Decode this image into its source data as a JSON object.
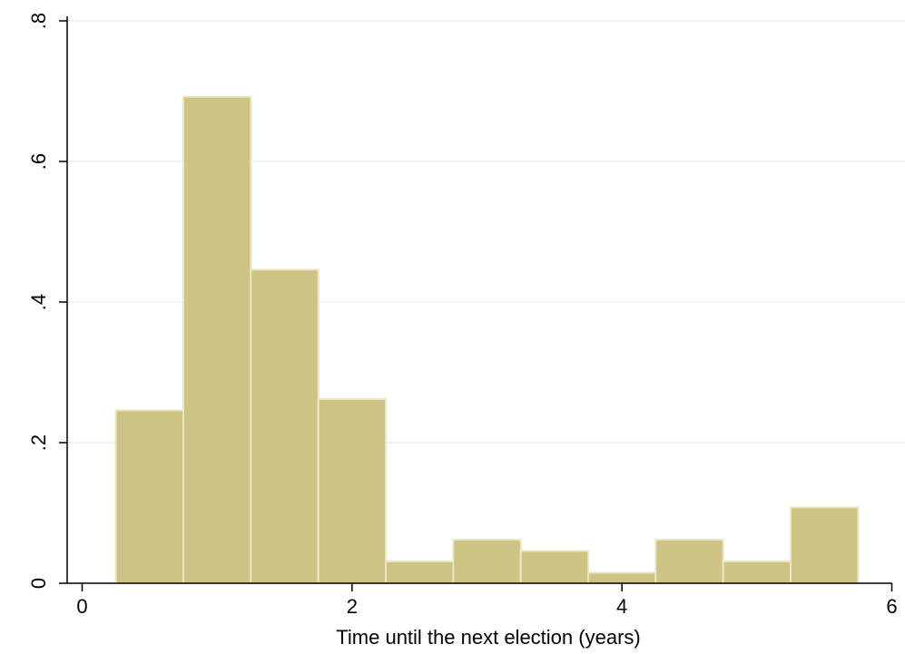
{
  "chart_data": {
    "type": "bar",
    "subtype": "histogram",
    "title": "",
    "xlabel": "Time until the next election (years)",
    "ylabel": "",
    "xlim": [
      0,
      6
    ],
    "ylim": [
      0,
      0.8
    ],
    "x_ticks": [
      0,
      2,
      4,
      6
    ],
    "x_tick_labels": [
      "0",
      "2",
      "4",
      "6"
    ],
    "y_ticks": [
      0,
      0.2,
      0.4,
      0.6,
      0.8
    ],
    "y_tick_labels": [
      "0",
      ".2",
      ".4",
      ".6",
      ".8"
    ],
    "grid": true,
    "grid_axis": "y",
    "bin_width": 0.5,
    "bins": [
      {
        "start": 0.25,
        "end": 0.75,
        "value": 0.246
      },
      {
        "start": 0.75,
        "end": 1.25,
        "value": 0.692
      },
      {
        "start": 1.25,
        "end": 1.75,
        "value": 0.446
      },
      {
        "start": 1.75,
        "end": 2.25,
        "value": 0.262
      },
      {
        "start": 2.25,
        "end": 2.75,
        "value": 0.031
      },
      {
        "start": 2.75,
        "end": 3.25,
        "value": 0.062
      },
      {
        "start": 3.25,
        "end": 3.75,
        "value": 0.046
      },
      {
        "start": 3.75,
        "end": 4.25,
        "value": 0.015
      },
      {
        "start": 4.25,
        "end": 4.75,
        "value": 0.062
      },
      {
        "start": 4.75,
        "end": 5.25,
        "value": 0.031
      },
      {
        "start": 5.25,
        "end": 5.75,
        "value": 0.108
      }
    ],
    "colors": {
      "bar_fill": "#ccc385",
      "bar_edge": "#eae5c2",
      "grid": "#e8eff1",
      "axis": "#000000"
    }
  }
}
